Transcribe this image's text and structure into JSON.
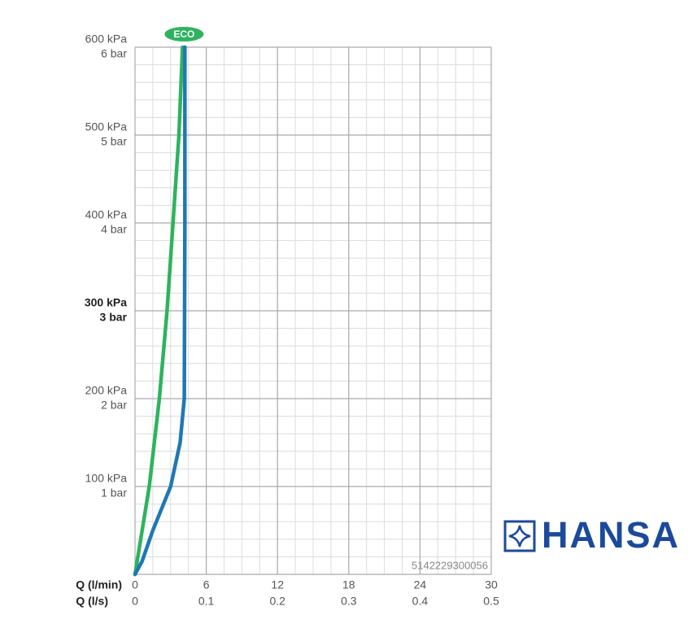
{
  "chart_data": {
    "type": "line",
    "xlabel": "Q (l/min)",
    "x2label": "Q (l/s)",
    "xlim": [
      0,
      30
    ],
    "xticks": [
      0,
      6,
      12,
      18,
      24,
      30
    ],
    "x2lim": [
      0,
      0.5
    ],
    "x2ticks": [
      0,
      0.1,
      0.2,
      0.3,
      0.4,
      0.5
    ],
    "ylim": [
      0,
      600
    ],
    "yticks": [
      {
        "value": 100,
        "label": "100 kPa"
      },
      {
        "value": 200,
        "label": "200 kPa"
      },
      {
        "value": 300,
        "label": "300 kPa"
      },
      {
        "value": 400,
        "label": "400 kPa"
      },
      {
        "value": 500,
        "label": "500 kPa"
      },
      {
        "value": 600,
        "label": "600 kPa"
      }
    ],
    "y2lim": [
      0,
      6
    ],
    "y2ticks": [
      {
        "value": 1,
        "label": "1 bar"
      },
      {
        "value": 2,
        "label": "2 bar"
      },
      {
        "value": 3,
        "label": "3 bar"
      },
      {
        "value": 4,
        "label": "4 bar"
      },
      {
        "value": 5,
        "label": "5 bar"
      },
      {
        "value": 6,
        "label": "6 bar"
      }
    ],
    "highlight_ytick": 300,
    "grid": true,
    "minor_grid": {
      "x": 1.5,
      "y": 20
    },
    "series": [
      {
        "name": "ECO",
        "color": "#2db35e",
        "x": [
          0,
          0.6,
          1.2,
          2.05,
          2.7,
          3.2,
          3.7,
          4.0
        ],
        "values": [
          0,
          50,
          100,
          200,
          300,
          400,
          500,
          600
        ]
      },
      {
        "color": "#1f78b4",
        "x": [
          0,
          0.6,
          1.5,
          3.0,
          3.8,
          4.15,
          4.2,
          4.2
        ],
        "values": [
          0,
          15,
          50,
          100,
          150,
          200,
          400,
          600
        ]
      }
    ],
    "code": "5142229300056",
    "brand": "HANSA"
  }
}
